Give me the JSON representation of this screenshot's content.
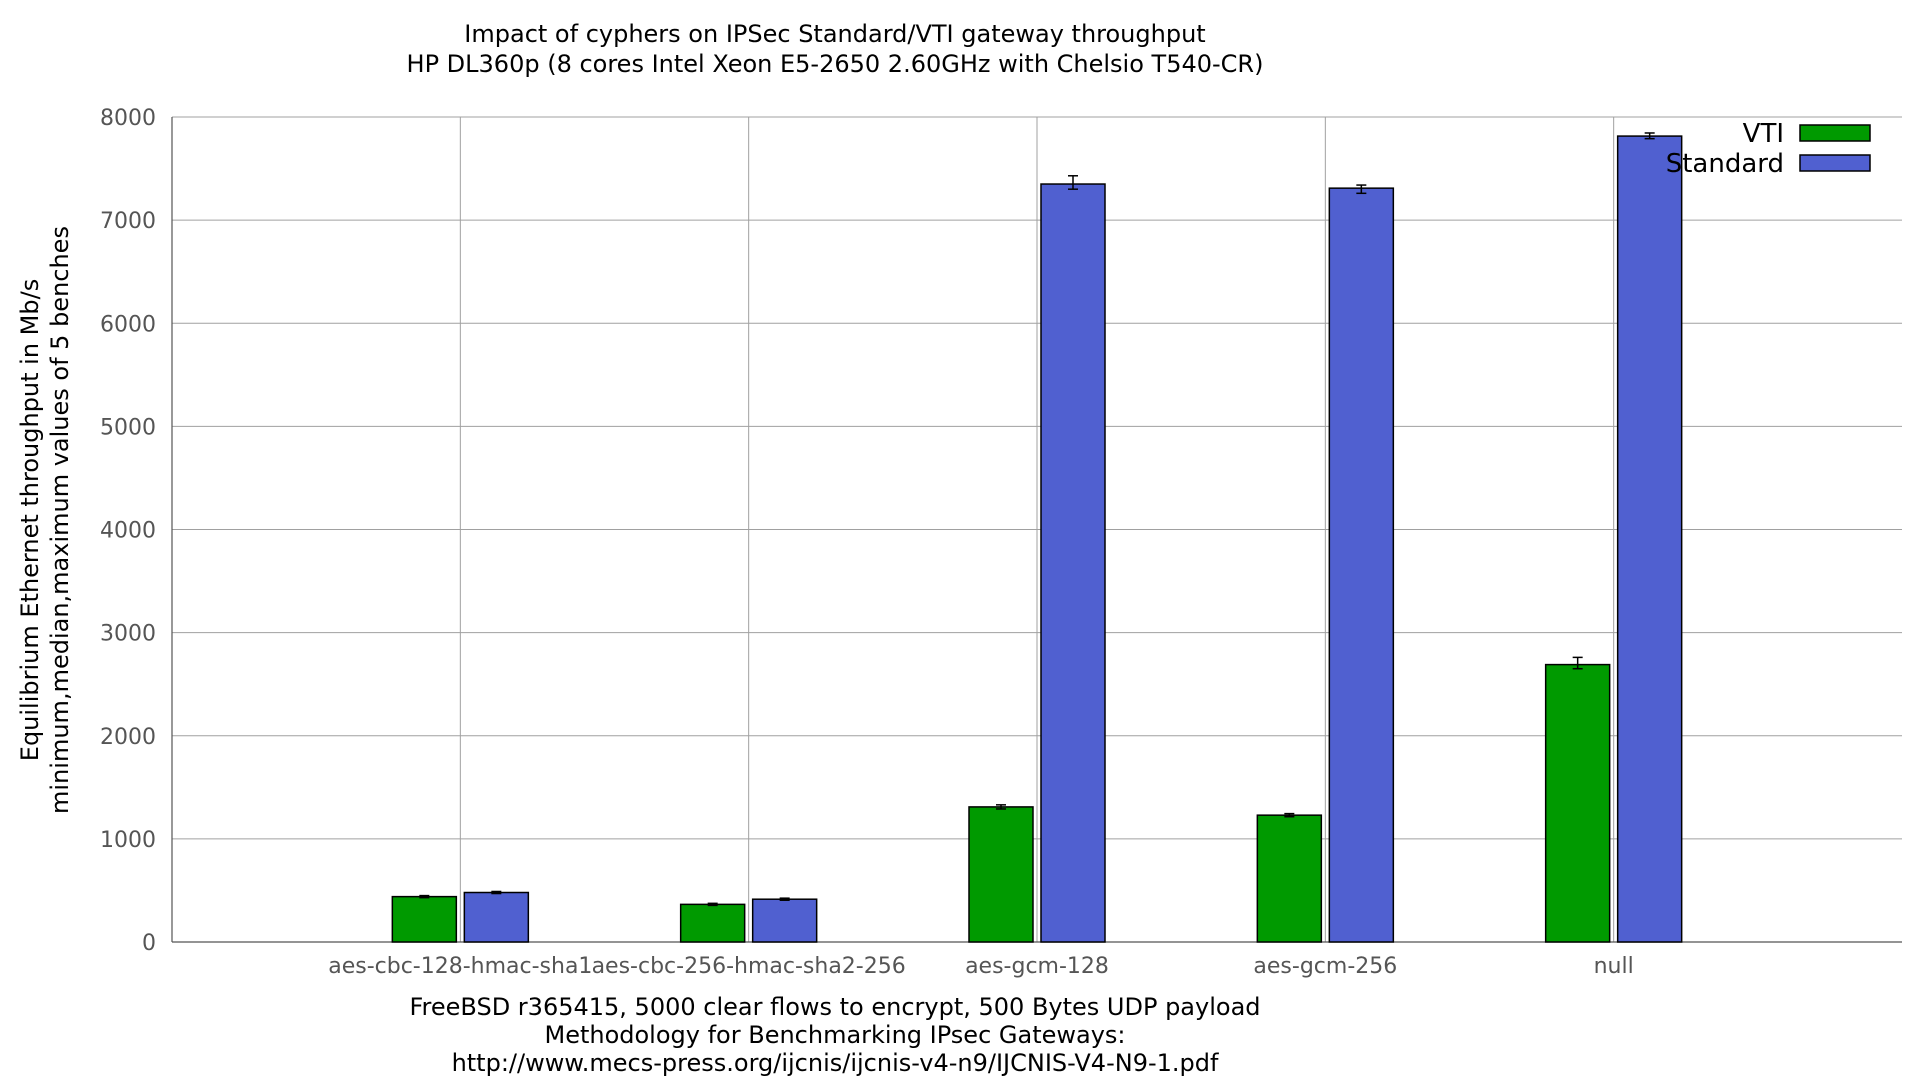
{
  "chart_data": {
    "type": "bar",
    "title": "Impact of cyphers on IPSec Standard/VTI gateway throughput",
    "subtitle": "HP DL360p (8 cores Intel Xeon E5-2650 2.60GHz with Chelsio T540-CR)",
    "ylabel": "Equilibrium Ethernet throughput in Mb/s",
    "ylabel2": "minimum,median,maximum values of 5 benches",
    "xlabel_lines": [
      "FreeBSD r365415, 5000 clear flows to encrypt, 500 Bytes UDP payload",
      "Methodology for Benchmarking IPsec Gateways:",
      "http://www.mecs-press.org/ijcnis/ijcnis-v4-n9/IJCNIS-V4-N9-1.pdf"
    ],
    "ylim": [
      0,
      8000
    ],
    "yticks": [
      0,
      1000,
      2000,
      3000,
      4000,
      5000,
      6000,
      7000,
      8000
    ],
    "grid": true,
    "legend_position": "top-right",
    "categories": [
      "aes-cbc-128-hmac-sha1",
      "aes-cbc-256-hmac-sha2-256",
      "aes-gcm-128",
      "aes-gcm-256",
      "null"
    ],
    "series": [
      {
        "name": "VTI",
        "color": "#009a00",
        "values": [
          440,
          365,
          1310,
          1230,
          2690
        ],
        "min": [
          430,
          355,
          1290,
          1215,
          2650
        ],
        "max": [
          450,
          375,
          1330,
          1245,
          2760
        ]
      },
      {
        "name": "Standard",
        "color": "#5060d0",
        "values": [
          480,
          415,
          7350,
          7310,
          7815
        ],
        "min": [
          470,
          405,
          7300,
          7260,
          7790
        ],
        "max": [
          490,
          425,
          7430,
          7340,
          7845
        ]
      }
    ]
  }
}
